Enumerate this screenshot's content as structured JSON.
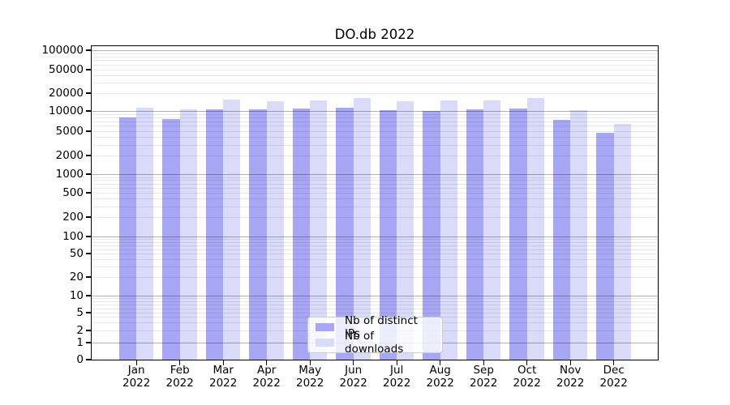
{
  "chart_data": {
    "type": "bar",
    "title": "DO.db 2022",
    "year_label": "2022",
    "categories": [
      "Jan",
      "Feb",
      "Mar",
      "Apr",
      "May",
      "Jun",
      "Jul",
      "Aug",
      "Sep",
      "Oct",
      "Nov",
      "Dec"
    ],
    "series": [
      {
        "name": "Nb of distinct IPs",
        "color": "#a7a7f5",
        "values": [
          8000,
          7600,
          10800,
          10500,
          11000,
          11500,
          10300,
          9900,
          10800,
          11100,
          7400,
          4700
        ]
      },
      {
        "name": "Nb of downloads",
        "color": "#dadaf9",
        "values": [
          11200,
          10500,
          15400,
          14500,
          15000,
          16700,
          14700,
          15000,
          15000,
          16700,
          10200,
          6500
        ]
      }
    ],
    "xlabel": "",
    "ylabel": "",
    "yscale": "symlog",
    "ylim": [
      0,
      100000
    ],
    "yticks": [
      100000,
      50000,
      20000,
      10000,
      5000,
      2000,
      1000,
      500,
      200,
      100,
      50,
      20,
      10,
      5,
      2,
      1,
      0
    ],
    "grid": true,
    "legend_position": "lower center"
  }
}
